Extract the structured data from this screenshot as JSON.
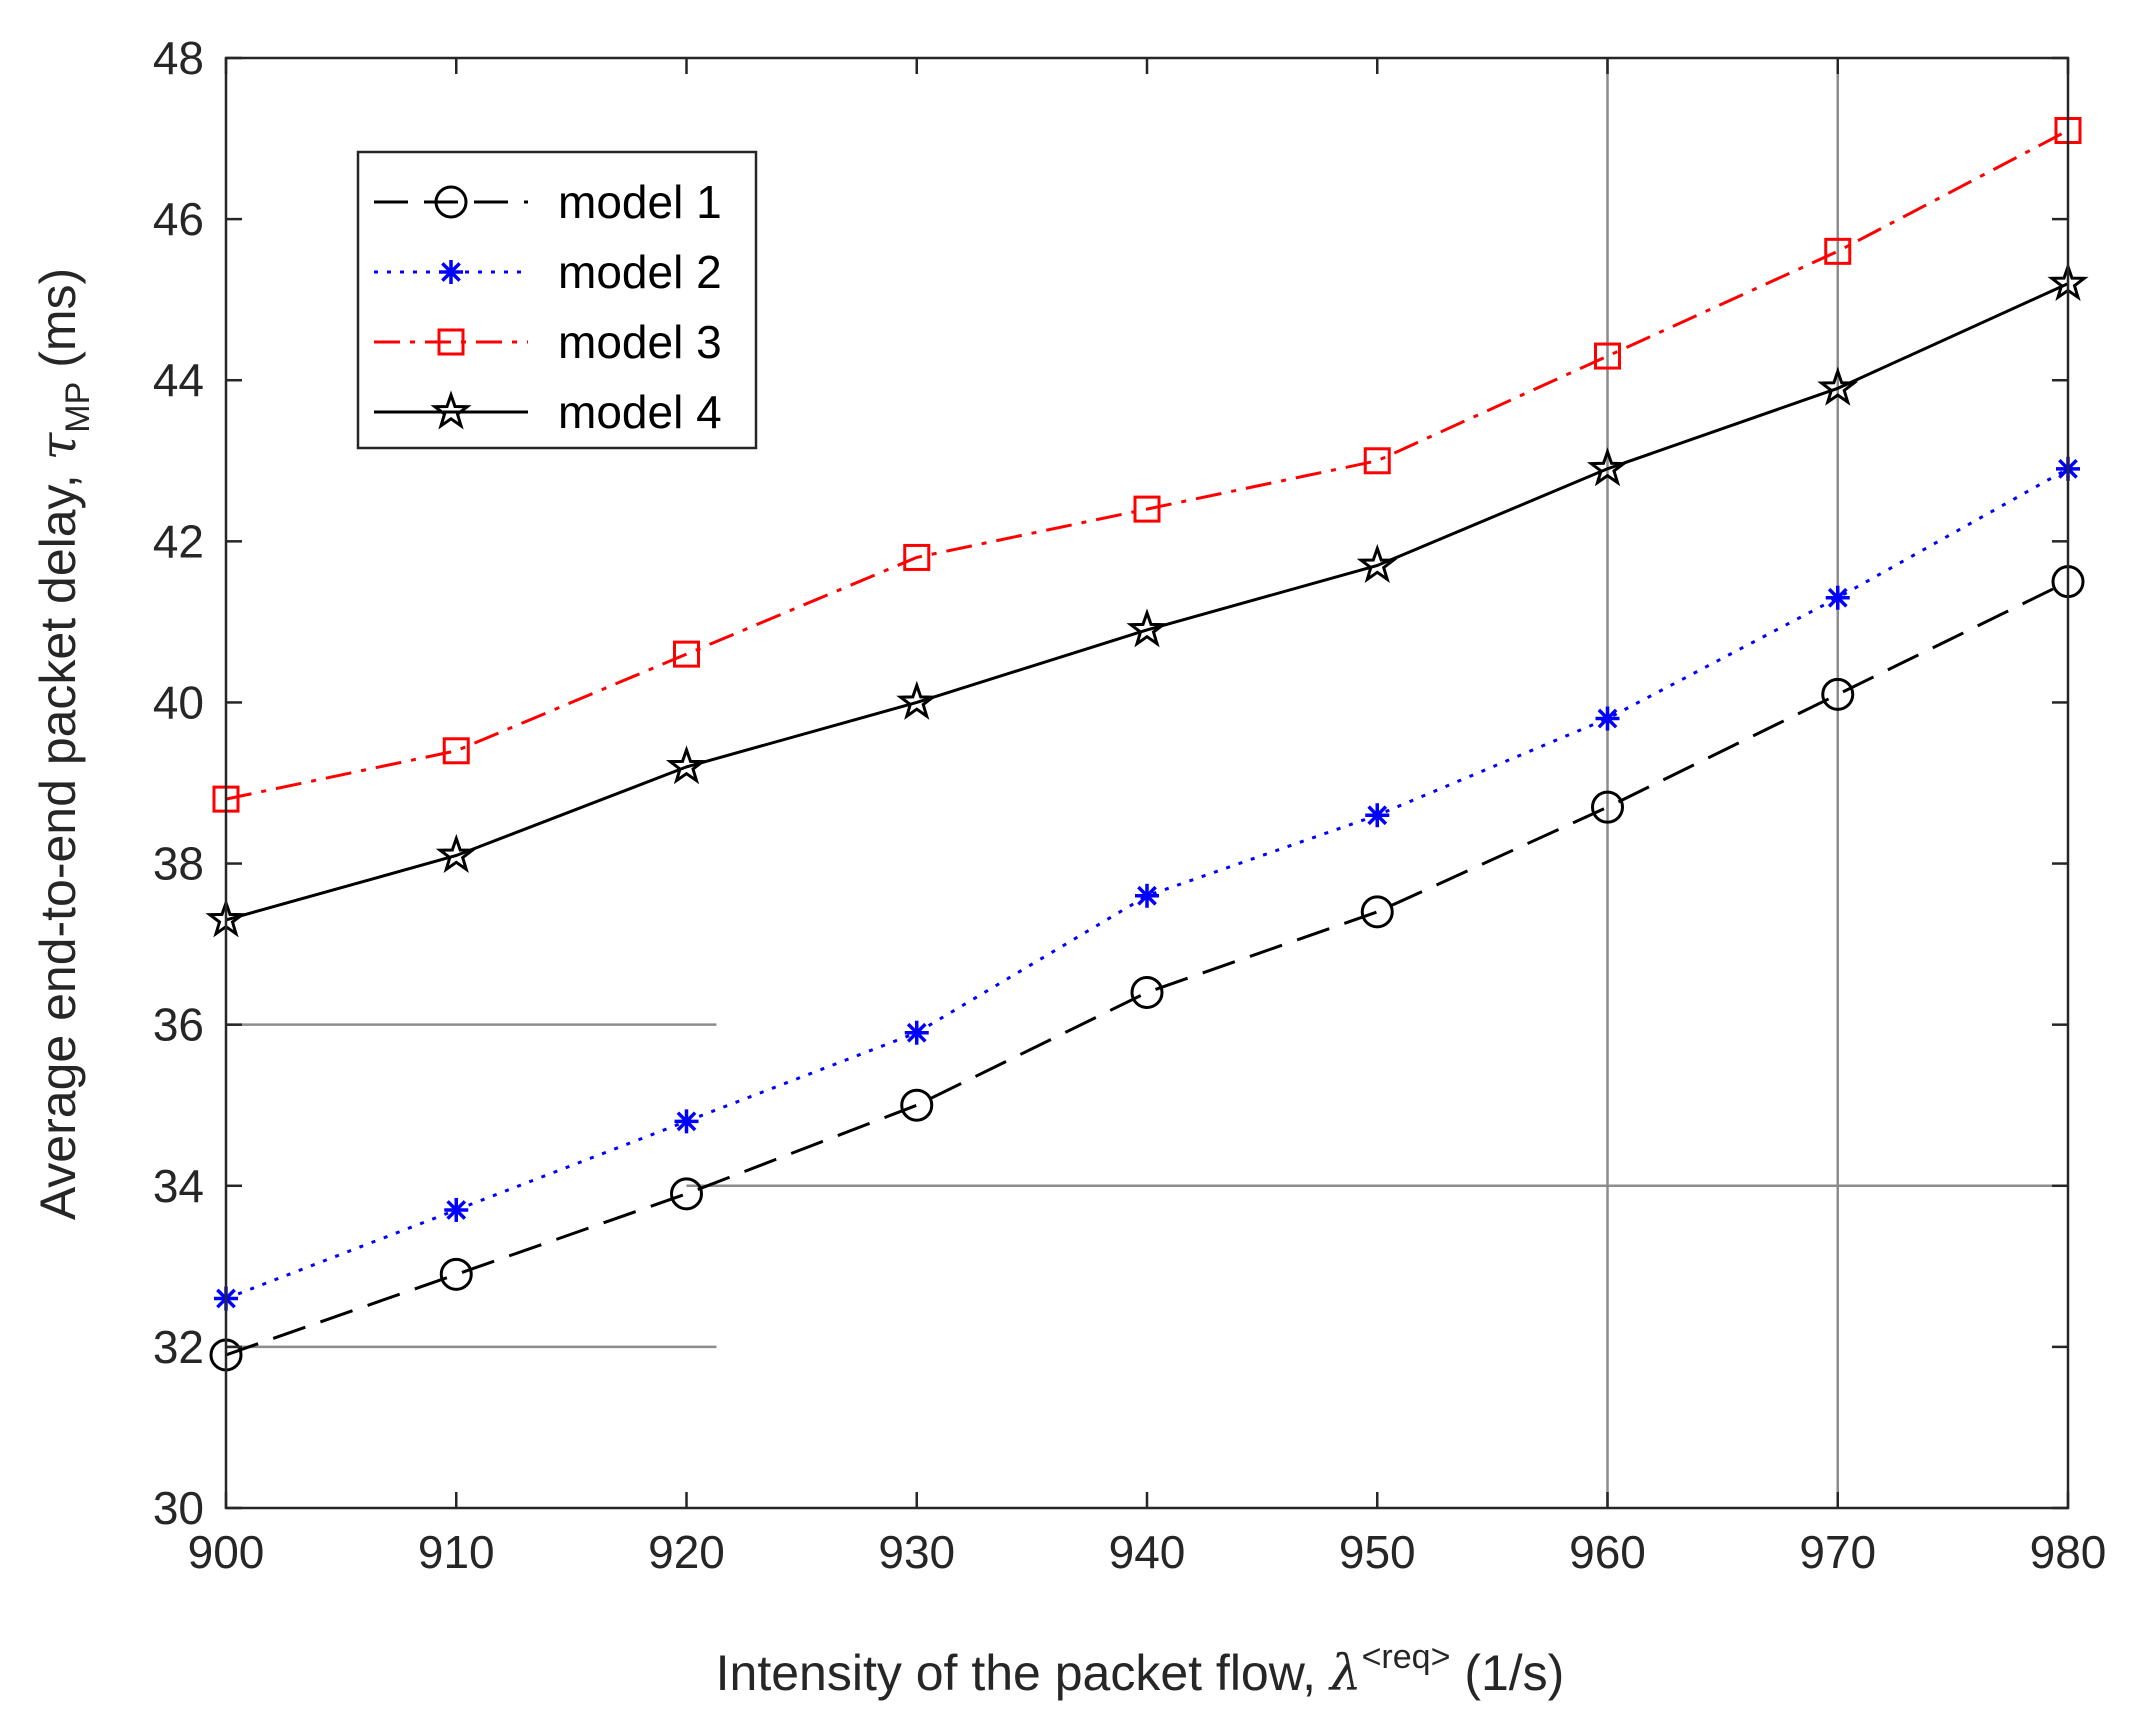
{
  "chart_data": {
    "type": "line",
    "title": "",
    "xlabel": {
      "text": "Intensity of the packet flow, ",
      "symbol": "λ",
      "superscript": "<req>",
      "unit": " (1/s)"
    },
    "ylabel": {
      "text": "Average end-to-end packet delay, ",
      "symbol": "τ",
      "subscript": "MP",
      "unit": " (ms)"
    },
    "xlim": [
      900,
      980
    ],
    "ylim": [
      30,
      48
    ],
    "xticks": [
      900,
      910,
      920,
      930,
      940,
      950,
      960,
      970,
      980
    ],
    "yticks": [
      30,
      32,
      34,
      36,
      38,
      40,
      42,
      44,
      46,
      48
    ],
    "x": [
      900,
      910,
      920,
      930,
      940,
      950,
      960,
      970,
      980
    ],
    "series": [
      {
        "name": "model 1",
        "color": "#000000",
        "marker": "circle",
        "dash": "long-dash",
        "values": [
          31.9,
          32.9,
          33.9,
          35.0,
          36.4,
          37.4,
          38.7,
          40.1,
          41.5
        ]
      },
      {
        "name": "model 2",
        "color": "#0000ff",
        "marker": "asterisk",
        "dash": "dotted",
        "values": [
          32.6,
          33.7,
          34.8,
          35.9,
          37.6,
          38.6,
          39.8,
          41.3,
          42.9
        ]
      },
      {
        "name": "model 3",
        "color": "#ff0000",
        "marker": "square",
        "dash": "dash-dot",
        "values": [
          38.8,
          39.4,
          40.6,
          41.8,
          42.4,
          43.0,
          44.3,
          45.6,
          47.1
        ]
      },
      {
        "name": "model 4",
        "color": "#000000",
        "marker": "star",
        "dash": "solid",
        "values": [
          37.3,
          38.1,
          39.2,
          40.0,
          40.9,
          41.7,
          42.9,
          43.9,
          45.2
        ]
      }
    ],
    "reference_lines": [
      {
        "orientation": "horizontal",
        "y": 36,
        "x_from": 900,
        "x_to": 921.3
      },
      {
        "orientation": "horizontal",
        "y": 32,
        "x_from": 900,
        "x_to": 921.3
      },
      {
        "orientation": "horizontal",
        "y": 34,
        "x_from": 920,
        "x_to": 980
      },
      {
        "orientation": "vertical",
        "x": 960,
        "y_from": 30,
        "y_to": 48
      },
      {
        "orientation": "vertical",
        "x": 970,
        "y_from": 30,
        "y_to": 48
      }
    ],
    "legend": {
      "position": "top-left"
    },
    "grid": false
  }
}
